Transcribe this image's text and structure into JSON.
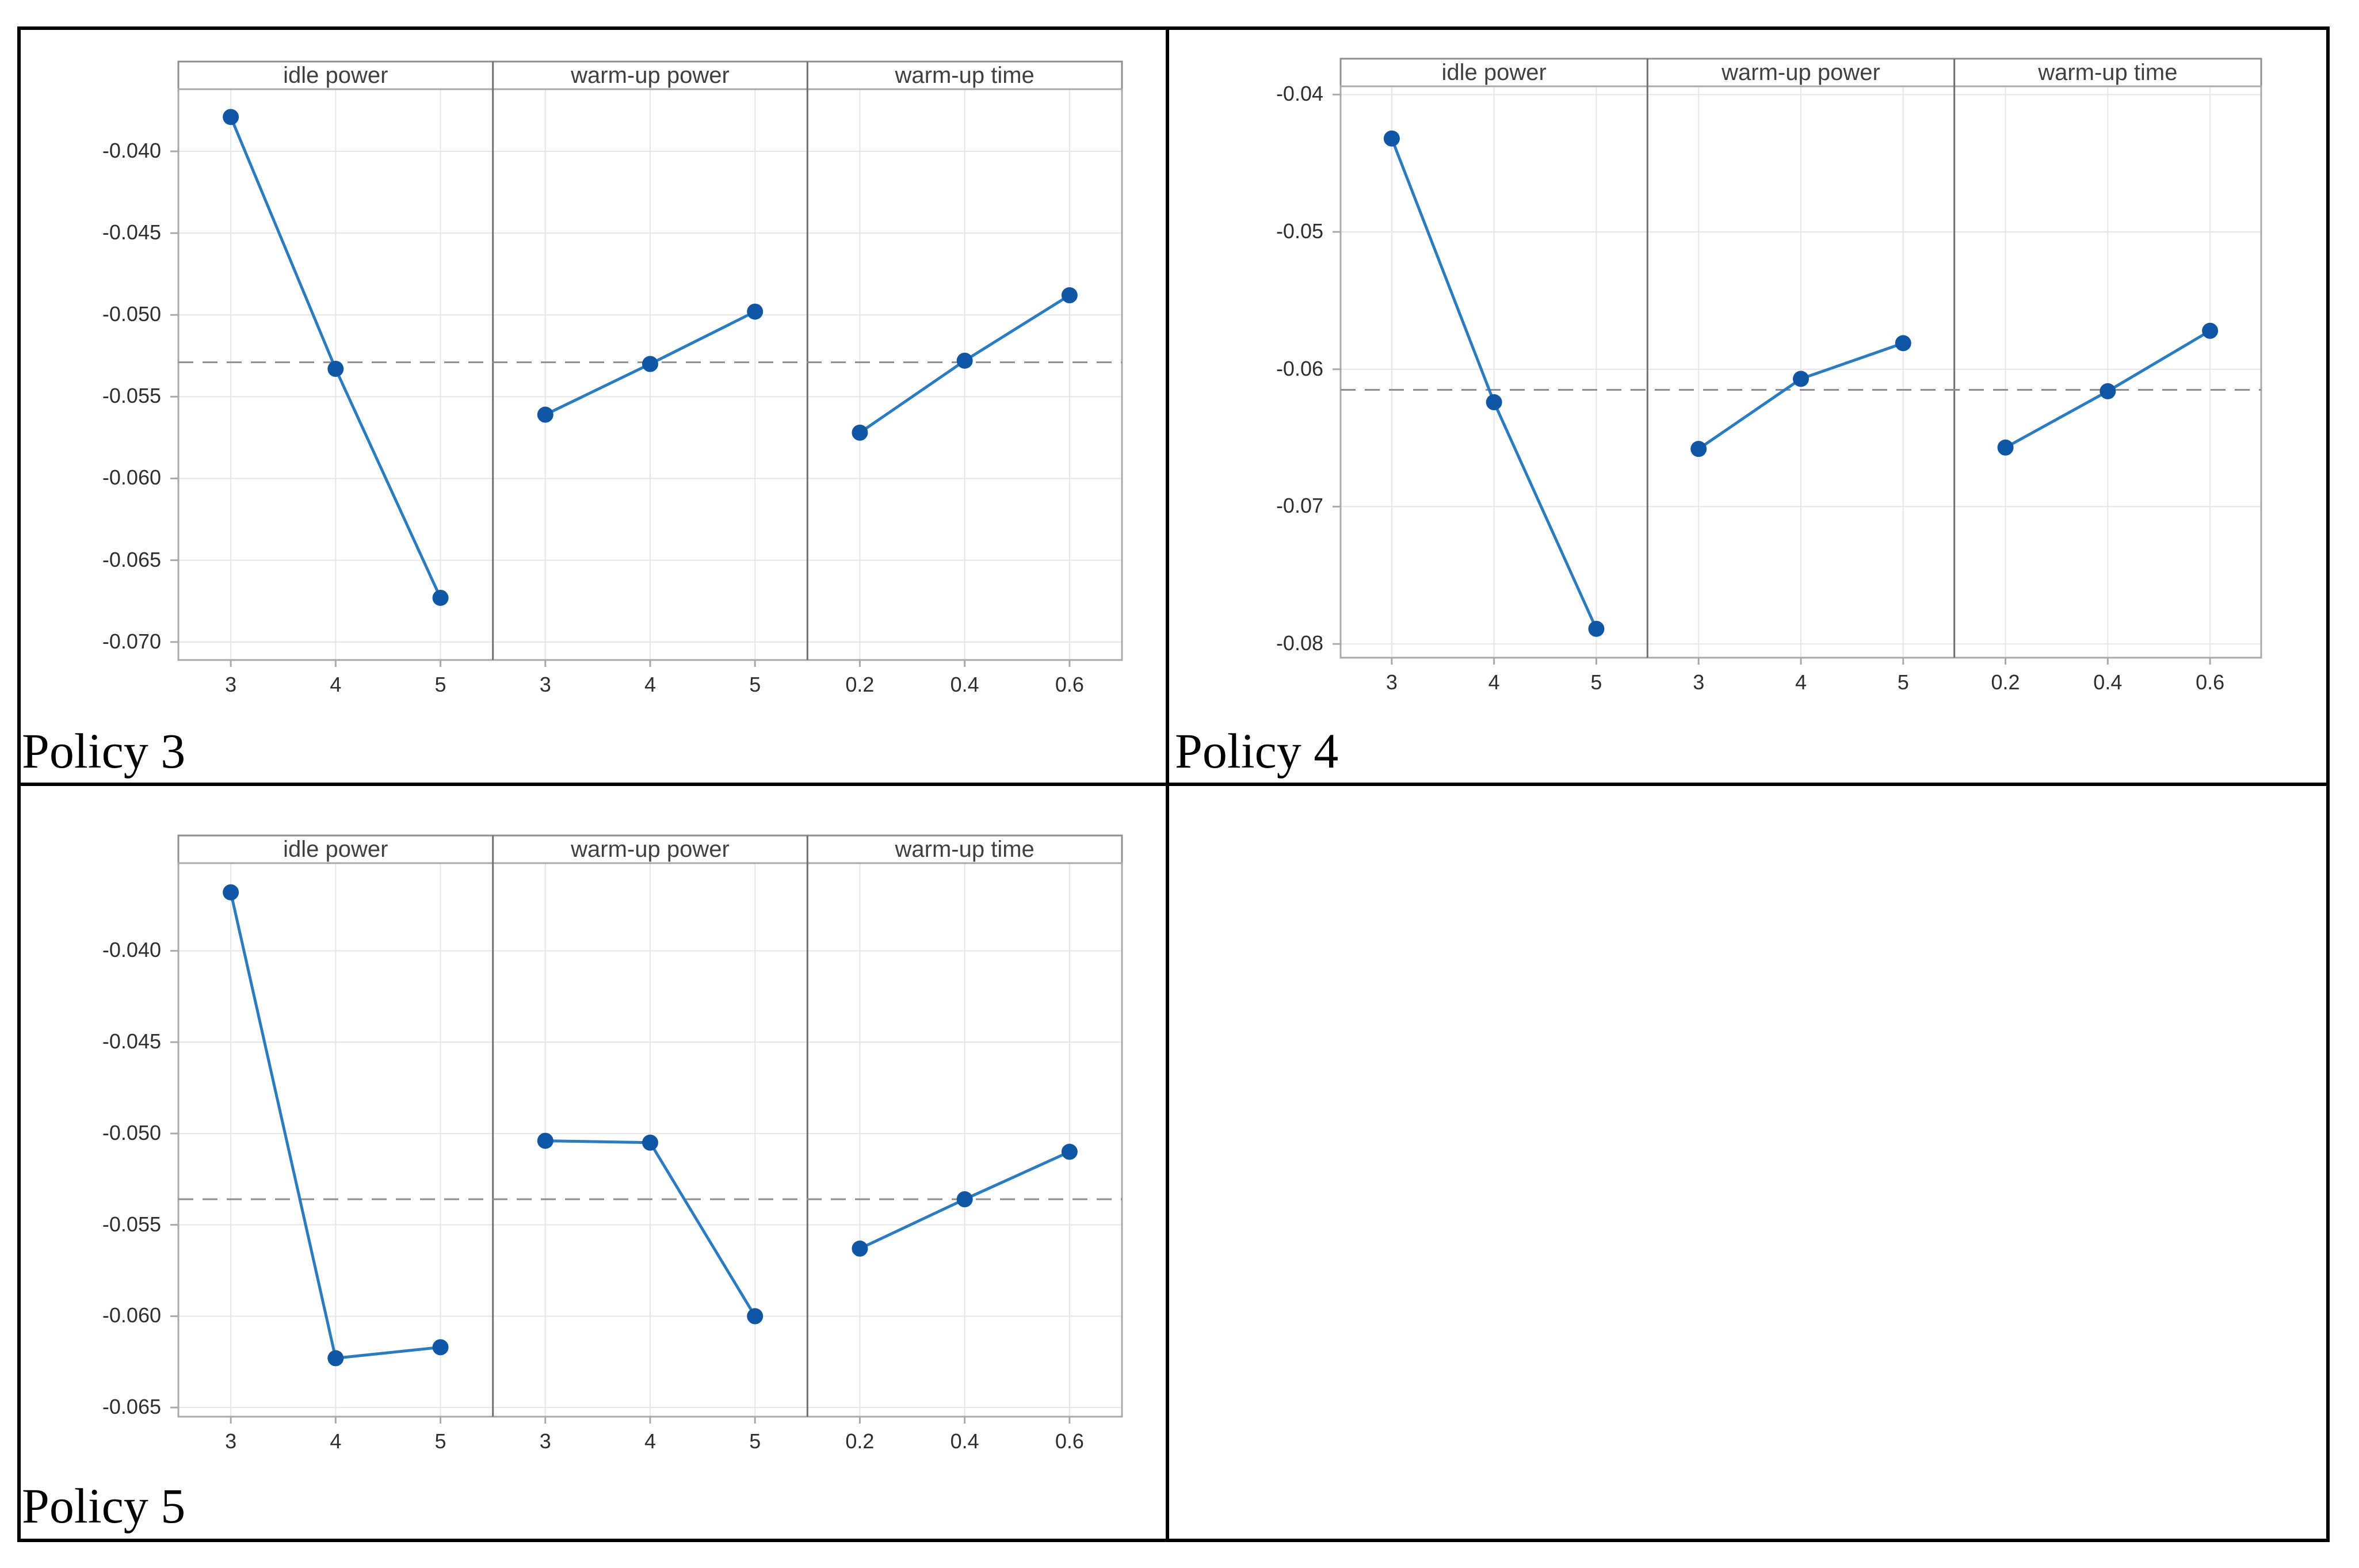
{
  "figure": {
    "description": "Main effects plots for three policies",
    "background": "#ffffff",
    "frame_color": "#000000"
  },
  "colors": {
    "line": "#2B7BC0",
    "marker": "#0F57A5",
    "mean_dash": "#8E8E8E",
    "grid": "#E6E6E6",
    "plot_border": "#A9A9A9",
    "panel_divider": "#707070",
    "header_border": "#8F8F8F",
    "header_text": "#404040",
    "tick_text": "#2E2E2E"
  },
  "chart_data": [
    {
      "type": "line",
      "policy_label": "Policy 3",
      "legend_position": "none",
      "grid": true,
      "mean_value": -0.0529,
      "ylim": [
        -0.0711,
        -0.0362
      ],
      "y_ticks": [
        {
          "value": -0.04,
          "label": "-0.040"
        },
        {
          "value": -0.045,
          "label": "-0.045"
        },
        {
          "value": -0.05,
          "label": "-0.050"
        },
        {
          "value": -0.055,
          "label": "-0.055"
        },
        {
          "value": -0.06,
          "label": "-0.060"
        },
        {
          "value": -0.065,
          "label": "-0.065"
        },
        {
          "value": -0.07,
          "label": "-0.070"
        }
      ],
      "panels": [
        {
          "header": "idle power",
          "categories": [
            "3",
            "4",
            "5"
          ],
          "values": [
            -0.0379,
            -0.0533,
            -0.0673
          ]
        },
        {
          "header": "warm-up power",
          "categories": [
            "3",
            "4",
            "5"
          ],
          "values": [
            -0.0561,
            -0.053,
            -0.0498
          ]
        },
        {
          "header": "warm-up time",
          "categories": [
            "0.2",
            "0.4",
            "0.6"
          ],
          "values": [
            -0.0572,
            -0.0528,
            -0.0488
          ]
        }
      ]
    },
    {
      "type": "line",
      "policy_label": "Policy 4",
      "legend_position": "none",
      "grid": true,
      "mean_value": -0.0615,
      "ylim": [
        -0.081,
        -0.0394
      ],
      "y_ticks": [
        {
          "value": -0.04,
          "label": "-0.04"
        },
        {
          "value": -0.05,
          "label": "-0.05"
        },
        {
          "value": -0.06,
          "label": "-0.06"
        },
        {
          "value": -0.07,
          "label": "-0.07"
        },
        {
          "value": -0.08,
          "label": "-0.08"
        }
      ],
      "panels": [
        {
          "header": "idle power",
          "categories": [
            "3",
            "4",
            "5"
          ],
          "values": [
            -0.0432,
            -0.0624,
            -0.0789
          ]
        },
        {
          "header": "warm-up power",
          "categories": [
            "3",
            "4",
            "5"
          ],
          "values": [
            -0.0658,
            -0.0607,
            -0.0581
          ]
        },
        {
          "header": "warm-up time",
          "categories": [
            "0.2",
            "0.4",
            "0.6"
          ],
          "values": [
            -0.0657,
            -0.0616,
            -0.0572
          ]
        }
      ]
    },
    {
      "type": "line",
      "policy_label": "Policy 5",
      "legend_position": "none",
      "grid": true,
      "mean_value": -0.0536,
      "ylim": [
        -0.0655,
        -0.0352
      ],
      "y_ticks": [
        {
          "value": -0.04,
          "label": "-0.040"
        },
        {
          "value": -0.045,
          "label": "-0.045"
        },
        {
          "value": -0.05,
          "label": "-0.050"
        },
        {
          "value": -0.055,
          "label": "-0.055"
        },
        {
          "value": -0.06,
          "label": "-0.060"
        },
        {
          "value": -0.065,
          "label": "-0.065"
        }
      ],
      "panels": [
        {
          "header": "idle power",
          "categories": [
            "3",
            "4",
            "5"
          ],
          "values": [
            -0.0368,
            -0.0623,
            -0.0617
          ]
        },
        {
          "header": "warm-up power",
          "categories": [
            "3",
            "4",
            "5"
          ],
          "values": [
            -0.0504,
            -0.0505,
            -0.06
          ]
        },
        {
          "header": "warm-up time",
          "categories": [
            "0.2",
            "0.4",
            "0.6"
          ],
          "values": [
            -0.0563,
            -0.0536,
            -0.051
          ]
        }
      ]
    }
  ]
}
